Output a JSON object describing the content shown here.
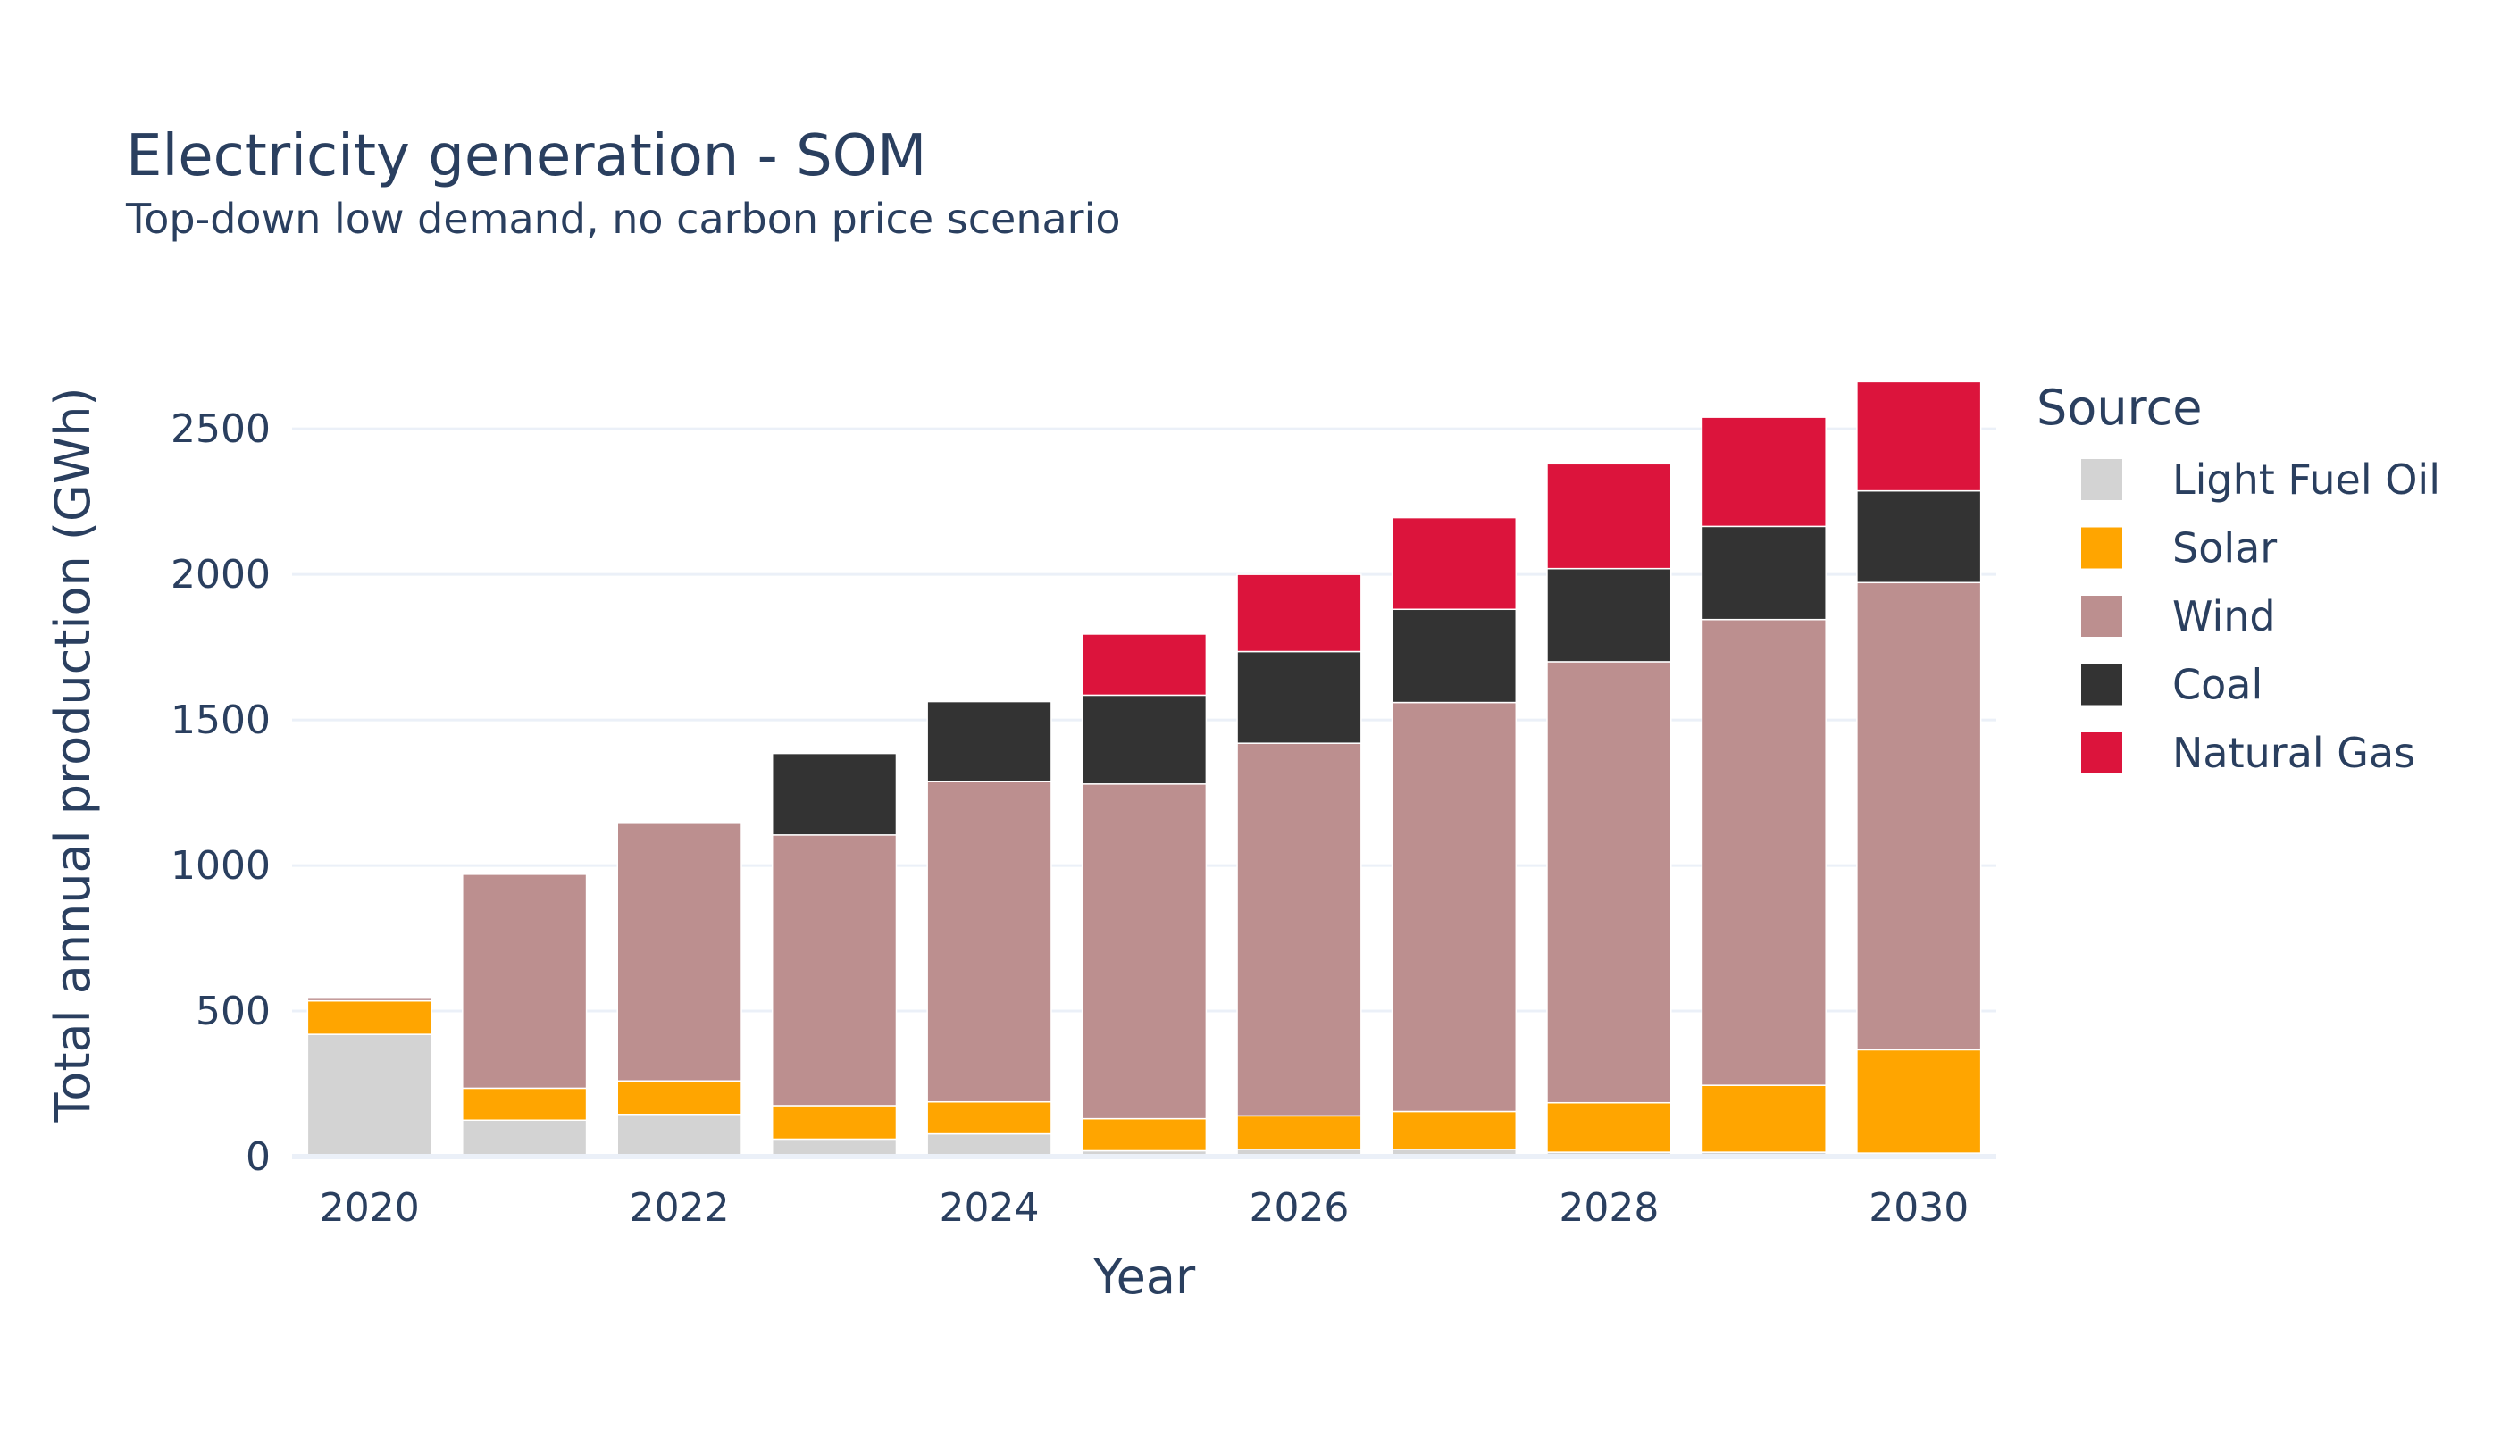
{
  "chart_data": {
    "type": "bar",
    "stacked": true,
    "title": "Electricity generation - SOM",
    "subtitle": "Top-down low demand, no carbon price scenario",
    "xlabel": "Year",
    "ylabel": "Total annual production (GWh)",
    "x": [
      2020,
      2021,
      2022,
      2023,
      2024,
      2025,
      2026,
      2027,
      2028,
      2029,
      2030
    ],
    "x_tick_values": [
      2020,
      2022,
      2024,
      2026,
      2028,
      2030
    ],
    "x_tick_labels": [
      "2020",
      "2022",
      "2024",
      "2026",
      "2028",
      "2030"
    ],
    "ylim": [
      0,
      2700
    ],
    "y_ticks": [
      0,
      500,
      1000,
      1500,
      2000,
      2500
    ],
    "y_tick_labels": [
      "0",
      "500",
      "1000",
      "1500",
      "2000",
      "2500"
    ],
    "grid": true,
    "legend": {
      "title": "Source",
      "position": "right"
    },
    "series": [
      {
        "name": "Light Fuel Oil",
        "color": "#d3d3d3",
        "values": [
          420,
          125,
          145,
          60,
          78,
          20,
          25,
          25,
          15,
          15,
          12
        ]
      },
      {
        "name": "Solar",
        "color": "#ffa500",
        "values": [
          115,
          110,
          115,
          115,
          110,
          110,
          115,
          130,
          170,
          230,
          355
        ]
      },
      {
        "name": "Wind",
        "color": "#bc8f8f",
        "values": [
          12,
          735,
          885,
          930,
          1100,
          1150,
          1280,
          1405,
          1515,
          1600,
          1605
        ]
      },
      {
        "name": "Coal",
        "color": "#333333",
        "values": [
          0,
          0,
          0,
          280,
          275,
          305,
          315,
          320,
          320,
          320,
          315
        ]
      },
      {
        "name": "Natural Gas",
        "color": "#dc143c",
        "values": [
          0,
          0,
          0,
          0,
          0,
          210,
          265,
          315,
          360,
          375,
          375
        ]
      }
    ]
  }
}
